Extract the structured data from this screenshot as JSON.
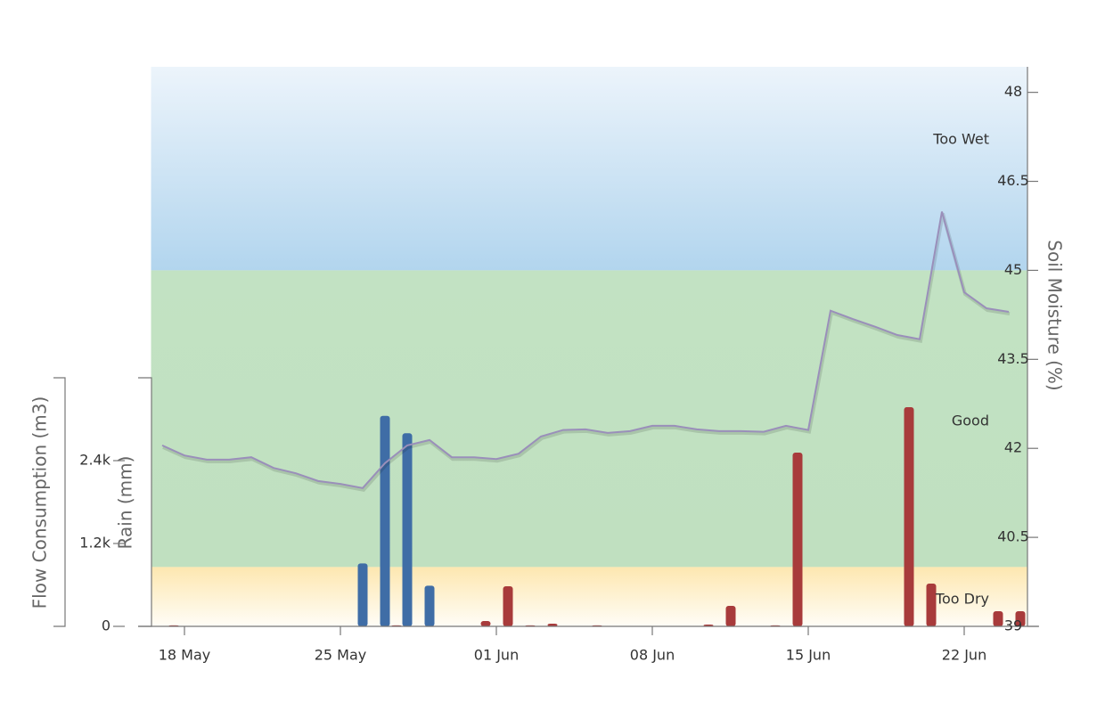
{
  "chart_data": {
    "type": "combo",
    "categories": [
      null,
      "18 May",
      null,
      null,
      null,
      null,
      null,
      null,
      "25 May",
      null,
      null,
      null,
      null,
      null,
      null,
      "01 Jun",
      null,
      null,
      null,
      null,
      null,
      null,
      "08 Jun",
      null,
      null,
      null,
      null,
      null,
      null,
      "15 Jun",
      null,
      null,
      null,
      null,
      null,
      null,
      "22 Jun",
      null,
      null
    ],
    "ylabel": "Flow Consumption (m3)",
    "ylim": [
      0,
      3600
    ],
    "yticks": [
      0,
      {
        "value": 1200,
        "label": "1.2k"
      },
      {
        "value": 2400,
        "label": "2.4k"
      }
    ],
    "y3label": "Rain (mm)",
    "y3lim": [
      0,
      30
    ],
    "y2label": "Soil Moisture (%)",
    "y2lim": [
      39,
      48.43
    ],
    "y2ticks": [
      39,
      40.5,
      42,
      43.5,
      45,
      46.5,
      48
    ],
    "bands": [
      {
        "label": "Too Wet",
        "from": 45,
        "to": 48.43
      },
      {
        "label": "Good",
        "from": 40,
        "to": 45
      },
      {
        "label": "Too Dry",
        "from": 39,
        "to": 40
      }
    ],
    "series": [
      {
        "type": "bar",
        "axis": "y",
        "color": "#a83b3b",
        "values": [
          15,
          0,
          0,
          0,
          0,
          0,
          0,
          0,
          0,
          0,
          15,
          0,
          0,
          0,
          77,
          580,
          15,
          39,
          0,
          15,
          0,
          0,
          0,
          0,
          26,
          297,
          0,
          15,
          2516,
          0,
          0,
          0,
          0,
          3174,
          619,
          0,
          0,
          219,
          219
        ]
      },
      {
        "type": "bar",
        "axis": "y3",
        "color": "#3f6da6",
        "values": [
          0,
          0,
          0,
          0,
          0,
          0,
          0,
          0,
          0,
          7.6,
          25.4,
          23.3,
          4.9,
          0,
          0,
          0,
          0,
          0,
          0,
          0,
          0,
          0,
          0,
          0,
          0,
          0,
          0,
          0,
          0,
          0,
          0,
          0,
          0,
          0,
          0,
          0,
          0,
          0,
          0
        ]
      },
      {
        "type": "line",
        "axis": "y2",
        "color": "#9a8fba",
        "values": [
          42.05,
          41.88,
          41.81,
          41.81,
          41.85,
          41.67,
          41.58,
          41.45,
          41.4,
          41.33,
          41.75,
          42.05,
          42.14,
          41.85,
          41.85,
          41.82,
          41.91,
          42.2,
          42.31,
          42.32,
          42.26,
          42.29,
          42.38,
          42.38,
          42.32,
          42.29,
          42.29,
          42.28,
          42.38,
          42.31,
          44.32,
          44.18,
          44.05,
          43.91,
          43.84,
          45.99,
          44.63,
          44.36,
          44.3
        ]
      }
    ]
  }
}
